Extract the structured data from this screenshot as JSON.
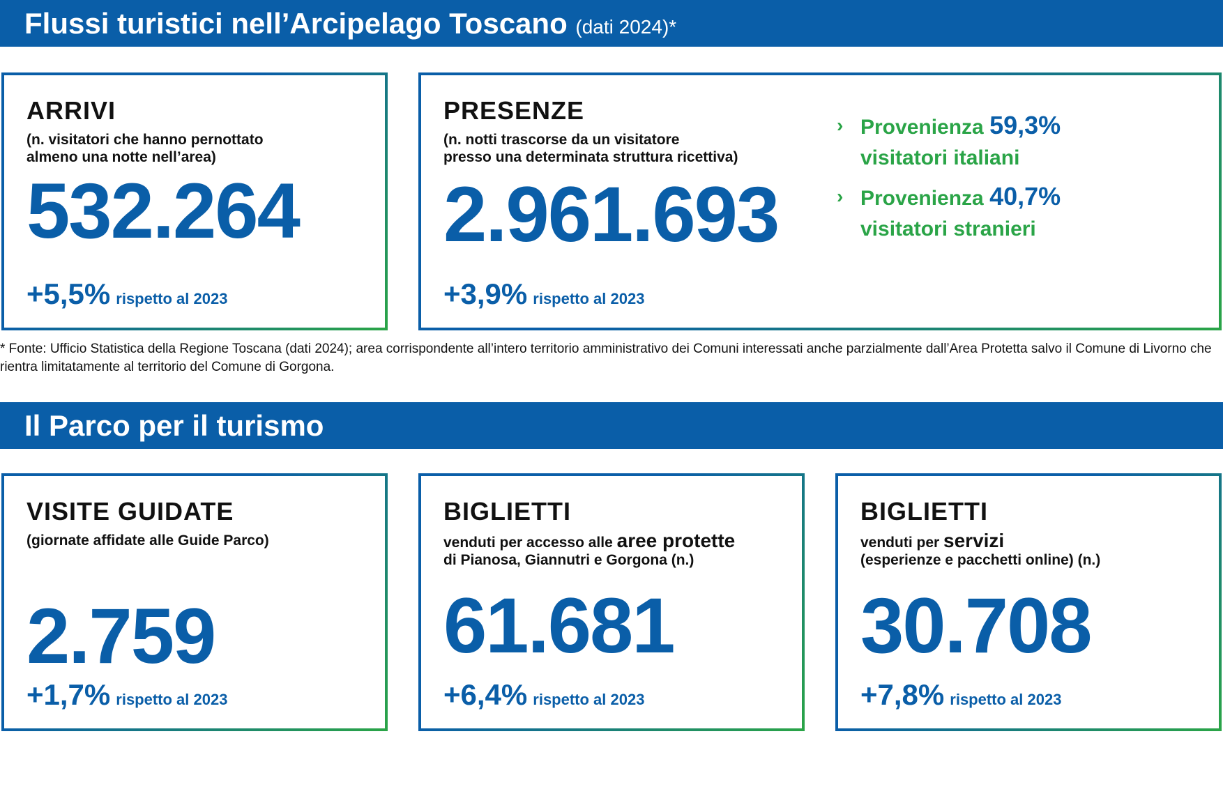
{
  "section1": {
    "title": "Flussi turistici nell’Arcipelago Toscano",
    "subtitle": "(dati 2024)*",
    "arrivi": {
      "title": "ARRIVI",
      "description": [
        "(n. visitatori che hanno pernottato",
        "almeno una notte nell’area)"
      ],
      "value": "532.264",
      "change": "+5,5%",
      "change_note": "rispetto al 2023"
    },
    "presenze": {
      "title": "PRESENZE",
      "description": [
        "(n. notti trascorse da un visitatore",
        "presso una determinata struttura ricettiva)"
      ],
      "value": "2.961.693",
      "change": "+3,9%",
      "change_note": "rispetto al 2023",
      "provenance": [
        {
          "prefix": "Provenienza",
          "value": "59,3%",
          "label": "visitatori italiani"
        },
        {
          "prefix": "Provenienza",
          "value": "40,7%",
          "label": "visitatori stranieri"
        }
      ]
    },
    "footnote": "* Fonte: Ufficio Statistica della Regione Toscana (dati 2024); area corrispondente all’intero territorio amministrativo dei Comuni interessati anche parzialmente dall’Area Protetta salvo il Comune di Livorno che rientra limitatamente al territorio del Comune di Gorgona."
  },
  "section2": {
    "title": "Il Parco per il turismo",
    "visite": {
      "title": "VISITE GUIDATE",
      "description": "(giornate affidate alle Guide Parco)",
      "value": "2.759",
      "change": "+1,7%",
      "change_note": "rispetto al 2023"
    },
    "biglietti_aree": {
      "title": "BIGLIETTI",
      "description_prefix": "venduti per accesso alle",
      "description_emphasis": "aree protette",
      "description_suffix": "di Pianosa, Giannutri e Gorgona (n.)",
      "value": "61.681",
      "change": "+6,4%",
      "change_note": "rispetto al 2023"
    },
    "biglietti_servizi": {
      "title": "BIGLIETTI",
      "description_prefix": "venduti per",
      "description_emphasis": "servizi",
      "description_suffix": "(esperienze e pacchetti online) (n.)",
      "value": "30.708",
      "change": "+7,8%",
      "change_note": "rispetto al 2023"
    }
  }
}
